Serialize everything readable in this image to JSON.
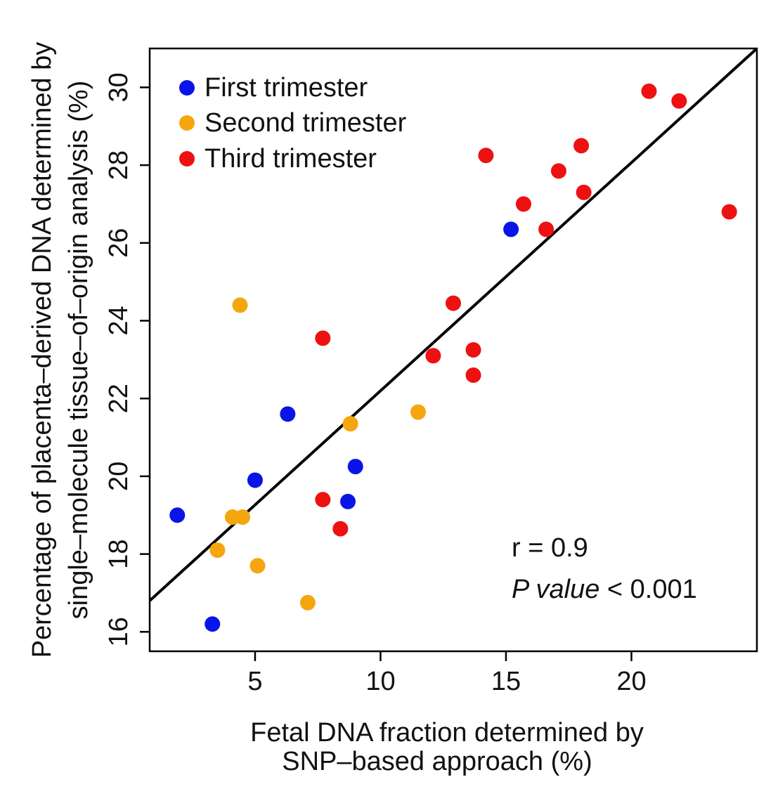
{
  "chart_data": {
    "type": "scatter",
    "title": "",
    "xlabel_lines": [
      "Fetal DNA fraction determined by",
      "SNP–based approach (%)"
    ],
    "ylabel_lines": [
      "Percentage of placenta–derived DNA determined by",
      "single–molecule tissue–of–origin analysis (%)"
    ],
    "xlim": [
      0.8,
      25.0
    ],
    "ylim": [
      15.5,
      31.0
    ],
    "xticks": [
      5,
      10,
      15,
      20
    ],
    "yticks": [
      16,
      18,
      20,
      22,
      24,
      26,
      28,
      30
    ],
    "grid": false,
    "legend_position": "top-left",
    "series": [
      {
        "name": "First trimester",
        "color": "#0a14e6",
        "points": [
          {
            "x": 1.9,
            "y": 19.0
          },
          {
            "x": 3.3,
            "y": 16.2
          },
          {
            "x": 5.0,
            "y": 19.9
          },
          {
            "x": 6.3,
            "y": 21.6
          },
          {
            "x": 8.7,
            "y": 19.35
          },
          {
            "x": 9.0,
            "y": 20.25
          },
          {
            "x": 15.2,
            "y": 26.35
          }
        ]
      },
      {
        "name": "Second trimester",
        "color": "#f5a60e",
        "points": [
          {
            "x": 3.5,
            "y": 18.1
          },
          {
            "x": 4.1,
            "y": 18.95
          },
          {
            "x": 4.5,
            "y": 18.95
          },
          {
            "x": 4.4,
            "y": 24.4
          },
          {
            "x": 5.1,
            "y": 17.7
          },
          {
            "x": 7.1,
            "y": 16.75
          },
          {
            "x": 8.8,
            "y": 21.35
          },
          {
            "x": 11.5,
            "y": 21.65
          }
        ]
      },
      {
        "name": "Third trimester",
        "color": "#ee1111",
        "points": [
          {
            "x": 7.7,
            "y": 23.55
          },
          {
            "x": 7.7,
            "y": 19.4
          },
          {
            "x": 8.4,
            "y": 18.65
          },
          {
            "x": 12.1,
            "y": 23.1
          },
          {
            "x": 12.9,
            "y": 24.45
          },
          {
            "x": 13.7,
            "y": 23.25
          },
          {
            "x": 13.7,
            "y": 22.6
          },
          {
            "x": 14.2,
            "y": 28.25
          },
          {
            "x": 15.7,
            "y": 27.0
          },
          {
            "x": 16.6,
            "y": 26.35
          },
          {
            "x": 17.1,
            "y": 27.85
          },
          {
            "x": 18.0,
            "y": 28.5
          },
          {
            "x": 18.1,
            "y": 27.3
          },
          {
            "x": 20.7,
            "y": 29.9
          },
          {
            "x": 21.9,
            "y": 29.65
          },
          {
            "x": 23.9,
            "y": 26.8
          }
        ]
      }
    ],
    "regression_line": {
      "x1": 0.8,
      "y1": 16.8,
      "x2": 25.0,
      "y2": 31.0,
      "color": "#000000"
    },
    "annotations": {
      "r_text": "r = 0.9",
      "p_label": "P value",
      "p_rest": " < 0.001"
    }
  }
}
